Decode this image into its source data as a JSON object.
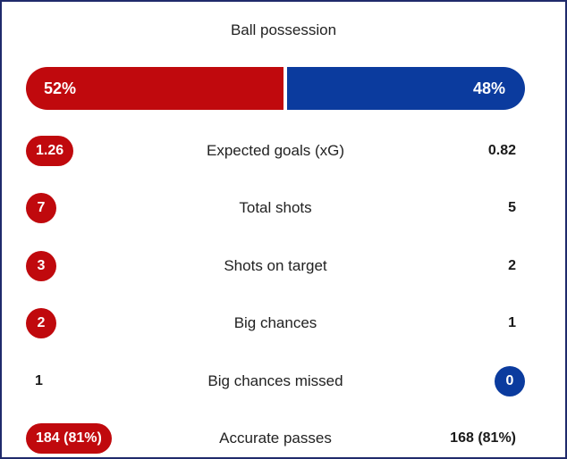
{
  "title": "Ball possession",
  "possession": {
    "home_label": "52%",
    "away_label": "48%",
    "home_fraction": 0.52,
    "away_fraction": 0.48
  },
  "colors": {
    "home": "#c0090d",
    "away": "#0b3b9e"
  },
  "stats": [
    {
      "label": "Expected goals (xG)",
      "home": "1.26",
      "away": "0.82"
    },
    {
      "label": "Total shots",
      "home": "7",
      "away": "5"
    },
    {
      "label": "Shots on target",
      "home": "3",
      "away": "2"
    },
    {
      "label": "Big chances",
      "home": "2",
      "away": "1"
    },
    {
      "label": "Big chances missed",
      "home": "1",
      "away": "0"
    },
    {
      "label": "Accurate passes",
      "home": "184 (81%)",
      "away": "168 (81%)"
    }
  ]
}
